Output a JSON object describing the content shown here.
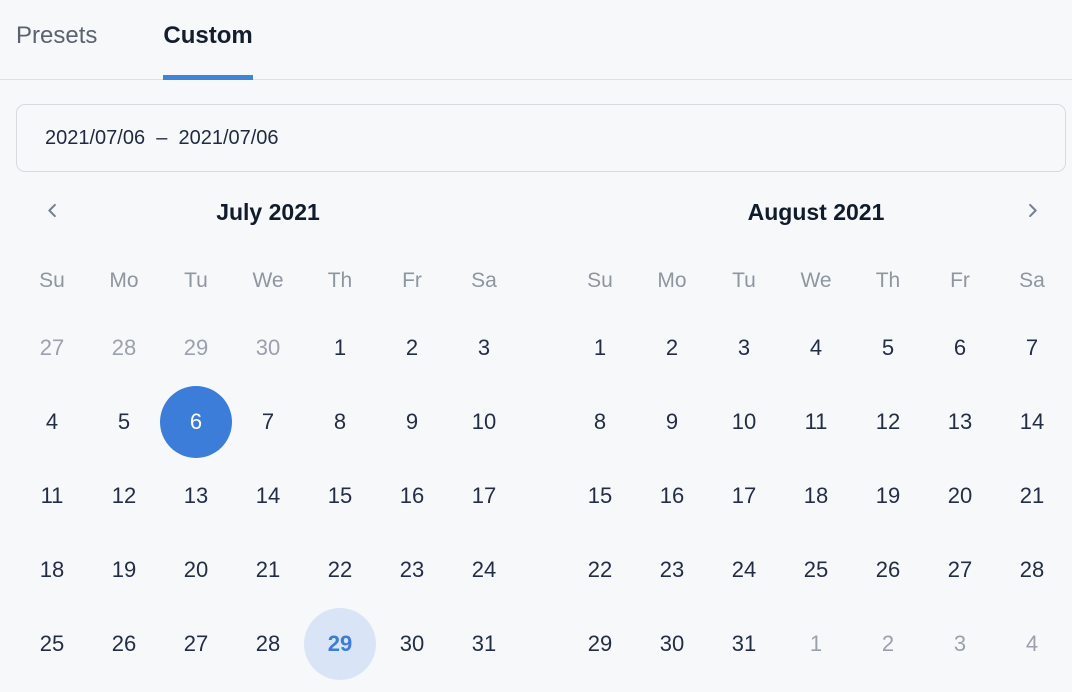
{
  "colors": {
    "bg": "#f7f8fa",
    "divider": "#dde0e4",
    "accent": "#3b7dd8",
    "underline": "#4183d6",
    "highlight_bg": "#d9e5f6",
    "input_border": "#d7dadf",
    "text_dark": "#1f2940",
    "title": "#101b2c",
    "text_day": "#232e45",
    "muted_day": "#9aa1ac",
    "weekday": "#8e96a0",
    "tab_inactive": "#5b6370",
    "tab_active": "#141d2c",
    "chevron": "#76808f"
  },
  "tabs": [
    {
      "label": "Presets",
      "active": false
    },
    {
      "label": "Custom",
      "active": true
    }
  ],
  "date_range_input": {
    "value": "2021/07/06  –  2021/07/06"
  },
  "calendars": [
    {
      "title": "July 2021",
      "weekdays": [
        "Su",
        "Mo",
        "Tu",
        "We",
        "Th",
        "Fr",
        "Sa"
      ],
      "weeks": [
        [
          {
            "d": "27",
            "state": "muted"
          },
          {
            "d": "28",
            "state": "muted"
          },
          {
            "d": "29",
            "state": "muted"
          },
          {
            "d": "30",
            "state": "muted"
          },
          {
            "d": "1",
            "state": "normal"
          },
          {
            "d": "2",
            "state": "normal"
          },
          {
            "d": "3",
            "state": "normal"
          }
        ],
        [
          {
            "d": "4",
            "state": "normal"
          },
          {
            "d": "5",
            "state": "normal"
          },
          {
            "d": "6",
            "state": "selected"
          },
          {
            "d": "7",
            "state": "normal"
          },
          {
            "d": "8",
            "state": "normal"
          },
          {
            "d": "9",
            "state": "normal"
          },
          {
            "d": "10",
            "state": "normal"
          }
        ],
        [
          {
            "d": "11",
            "state": "normal"
          },
          {
            "d": "12",
            "state": "normal"
          },
          {
            "d": "13",
            "state": "normal"
          },
          {
            "d": "14",
            "state": "normal"
          },
          {
            "d": "15",
            "state": "normal"
          },
          {
            "d": "16",
            "state": "normal"
          },
          {
            "d": "17",
            "state": "normal"
          }
        ],
        [
          {
            "d": "18",
            "state": "normal"
          },
          {
            "d": "19",
            "state": "normal"
          },
          {
            "d": "20",
            "state": "normal"
          },
          {
            "d": "21",
            "state": "normal"
          },
          {
            "d": "22",
            "state": "normal"
          },
          {
            "d": "23",
            "state": "normal"
          },
          {
            "d": "24",
            "state": "normal"
          }
        ],
        [
          {
            "d": "25",
            "state": "normal"
          },
          {
            "d": "26",
            "state": "normal"
          },
          {
            "d": "27",
            "state": "normal"
          },
          {
            "d": "28",
            "state": "normal"
          },
          {
            "d": "29",
            "state": "highlighted"
          },
          {
            "d": "30",
            "state": "normal"
          },
          {
            "d": "31",
            "state": "normal"
          }
        ]
      ]
    },
    {
      "title": "August 2021",
      "weekdays": [
        "Su",
        "Mo",
        "Tu",
        "We",
        "Th",
        "Fr",
        "Sa"
      ],
      "weeks": [
        [
          {
            "d": "1",
            "state": "normal"
          },
          {
            "d": "2",
            "state": "normal"
          },
          {
            "d": "3",
            "state": "normal"
          },
          {
            "d": "4",
            "state": "normal"
          },
          {
            "d": "5",
            "state": "normal"
          },
          {
            "d": "6",
            "state": "normal"
          },
          {
            "d": "7",
            "state": "normal"
          }
        ],
        [
          {
            "d": "8",
            "state": "normal"
          },
          {
            "d": "9",
            "state": "normal"
          },
          {
            "d": "10",
            "state": "normal"
          },
          {
            "d": "11",
            "state": "normal"
          },
          {
            "d": "12",
            "state": "normal"
          },
          {
            "d": "13",
            "state": "normal"
          },
          {
            "d": "14",
            "state": "normal"
          }
        ],
        [
          {
            "d": "15",
            "state": "normal"
          },
          {
            "d": "16",
            "state": "normal"
          },
          {
            "d": "17",
            "state": "normal"
          },
          {
            "d": "18",
            "state": "normal"
          },
          {
            "d": "19",
            "state": "normal"
          },
          {
            "d": "20",
            "state": "normal"
          },
          {
            "d": "21",
            "state": "normal"
          }
        ],
        [
          {
            "d": "22",
            "state": "normal"
          },
          {
            "d": "23",
            "state": "normal"
          },
          {
            "d": "24",
            "state": "normal"
          },
          {
            "d": "25",
            "state": "normal"
          },
          {
            "d": "26",
            "state": "normal"
          },
          {
            "d": "27",
            "state": "normal"
          },
          {
            "d": "28",
            "state": "normal"
          }
        ],
        [
          {
            "d": "29",
            "state": "normal"
          },
          {
            "d": "30",
            "state": "normal"
          },
          {
            "d": "31",
            "state": "normal"
          },
          {
            "d": "1",
            "state": "muted"
          },
          {
            "d": "2",
            "state": "muted"
          },
          {
            "d": "3",
            "state": "muted"
          },
          {
            "d": "4",
            "state": "muted"
          }
        ]
      ]
    }
  ]
}
